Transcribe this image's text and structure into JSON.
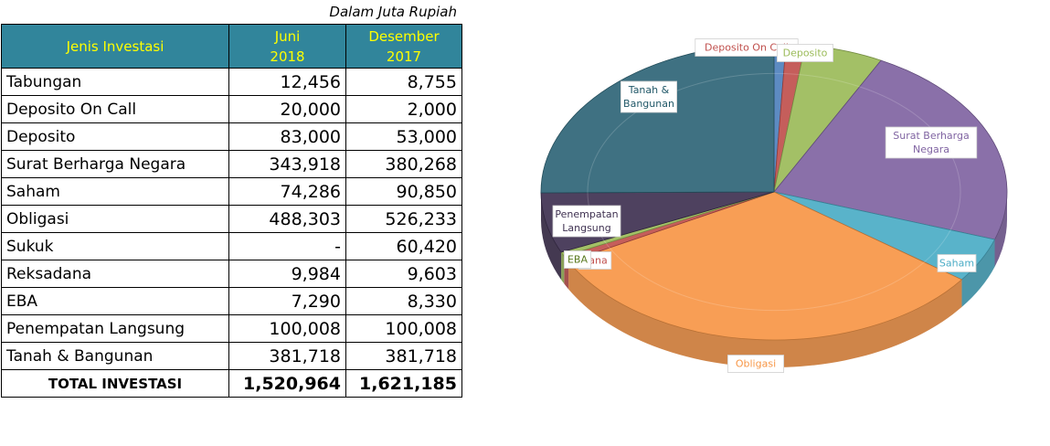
{
  "unit_note": "Dalam Juta Rupiah",
  "table": {
    "headers": {
      "name": "Jenis Investasi",
      "col1_line1": "Juni",
      "col1_line2": "2018",
      "col2_line1": "Desember",
      "col2_line2": "2017"
    },
    "rows": [
      {
        "name": "Tabungan",
        "jun2018": "12,456",
        "dec2017": "8,755"
      },
      {
        "name": "Deposito On Call",
        "jun2018": "20,000",
        "dec2017": "2,000"
      },
      {
        "name": "Deposito",
        "jun2018": "83,000",
        "dec2017": "53,000"
      },
      {
        "name": "Surat Berharga Negara",
        "jun2018": "343,918",
        "dec2017": "380,268"
      },
      {
        "name": "Saham",
        "jun2018": "74,286",
        "dec2017": "90,850"
      },
      {
        "name": "Obligasi",
        "jun2018": "488,303",
        "dec2017": "526,233"
      },
      {
        "name": "Sukuk",
        "jun2018": "-",
        "dec2017": "60,420"
      },
      {
        "name": "Reksadana",
        "jun2018": "9,984",
        "dec2017": "9,603"
      },
      {
        "name": "EBA",
        "jun2018": "7,290",
        "dec2017": "8,330"
      },
      {
        "name": "Penempatan Langsung",
        "jun2018": "100,008",
        "dec2017": "100,008"
      },
      {
        "name": "Tanah & Bangunan",
        "jun2018": "381,718",
        "dec2017": "381,718"
      }
    ],
    "total": {
      "name": "TOTAL INVESTASI",
      "jun2018": "1,520,964",
      "dec2017": "1,621,185"
    }
  },
  "chart_data": {
    "type": "pie",
    "style": "3d-pie",
    "slices": [
      {
        "label": "Tabungan",
        "value": 12456,
        "color": "#4f81bd",
        "show_label": false
      },
      {
        "label": "Deposito On Call",
        "value": 20000,
        "color": "#c0504d",
        "show_label": true,
        "label_lines": [
          "Deposito On Call"
        ],
        "label_text_color": "#c0504d"
      },
      {
        "label": "Deposito",
        "value": 83000,
        "color": "#9bbb59",
        "show_label": true,
        "label_lines": [
          "Deposito"
        ],
        "label_text_color": "#9bbb59"
      },
      {
        "label": "Surat Berharga Negara",
        "value": 343918,
        "color": "#8064a2",
        "show_label": true,
        "label_lines": [
          "Surat Berharga",
          "Negara"
        ],
        "label_text_color": "#8064a2"
      },
      {
        "label": "Saham",
        "value": 74286,
        "color": "#4bacc6",
        "show_label": true,
        "label_lines": [
          "Saham"
        ],
        "label_text_color": "#4bacc6"
      },
      {
        "label": "Obligasi",
        "value": 488303,
        "color": "#f79646",
        "show_label": true,
        "label_lines": [
          "Obligasi"
        ],
        "label_text_color": "#f79646"
      },
      {
        "label": "Reksadana",
        "value": 9984,
        "color": "#c0504d",
        "show_label": true,
        "label_lines": [
          "dana"
        ],
        "label_text_color": "#c0504d"
      },
      {
        "label": "EBA",
        "value": 7290,
        "color": "#9bbb59",
        "show_label": true,
        "label_lines": [
          "EBA"
        ],
        "label_text_color": "#5a7a20"
      },
      {
        "label": "Penempatan Langsung",
        "value": 100008,
        "color": "#3f3151",
        "show_label": true,
        "label_lines": [
          "Penempatan",
          "Langsung"
        ],
        "label_text_color": "#3f3151"
      },
      {
        "label": "Tanah & Bangunan",
        "value": 381718,
        "color": "#2f6577",
        "show_label": true,
        "label_lines": [
          "Tanah &",
          "Bangunan"
        ],
        "label_text_color": "#215868"
      }
    ]
  }
}
